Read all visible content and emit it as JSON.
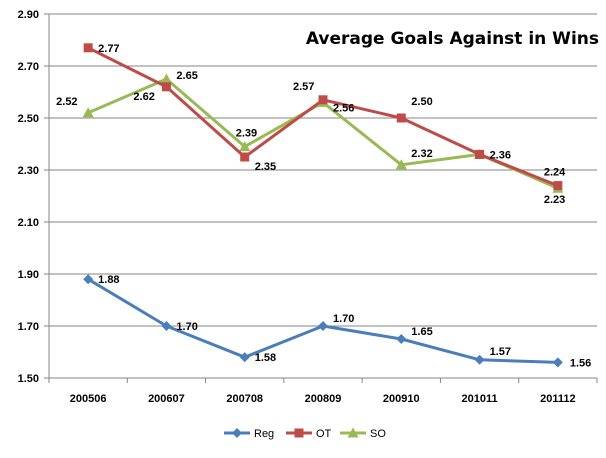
{
  "chart_data": {
    "type": "line",
    "title": "Average Goals Against in Wins",
    "xlabel": "",
    "ylabel": "",
    "categories": [
      "200506",
      "200607",
      "200708",
      "200809",
      "200910",
      "201011",
      "201112"
    ],
    "y_ticks": [
      "1.50",
      "1.70",
      "1.90",
      "2.10",
      "2.30",
      "2.50",
      "2.70",
      "2.90"
    ],
    "ylim": [
      1.5,
      2.9
    ],
    "grid": "horizontal",
    "legend_position": "bottom",
    "series": [
      {
        "name": "Reg",
        "color": "#4a7ebb",
        "marker": "diamond",
        "values": [
          1.88,
          1.7,
          1.58,
          1.7,
          1.65,
          1.57,
          1.56
        ],
        "labels": [
          "1.88",
          "1.70",
          "1.58",
          "1.70",
          "1.65",
          "1.57",
          "1.56"
        ]
      },
      {
        "name": "OT",
        "color": "#be4b48",
        "marker": "square",
        "values": [
          2.77,
          2.62,
          2.35,
          2.57,
          2.5,
          2.36,
          2.24
        ],
        "labels": [
          "2.77",
          "2.62",
          "2.35",
          "2.57",
          "2.50",
          "2.36",
          "2.24"
        ]
      },
      {
        "name": "SO",
        "color": "#98b954",
        "marker": "triangle",
        "values": [
          2.52,
          2.65,
          2.39,
          2.56,
          2.32,
          2.36,
          2.23
        ],
        "labels": [
          "2.52",
          "2.65",
          "2.39",
          "2.56",
          "2.32",
          "",
          "2.23"
        ]
      }
    ]
  }
}
